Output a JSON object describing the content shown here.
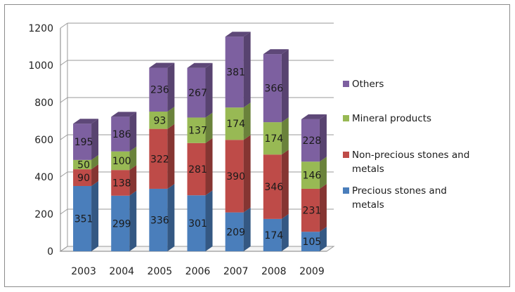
{
  "chart_data": {
    "type": "bar",
    "stacked": true,
    "three_d": true,
    "title": "",
    "xlabel": "",
    "ylabel": "",
    "categories": [
      "2003",
      "2004",
      "2005",
      "2006",
      "2007",
      "2008",
      "2009"
    ],
    "ylim": [
      0,
      1200
    ],
    "yticks": [
      "0",
      "200",
      "400",
      "600",
      "800",
      "1000",
      "1200"
    ],
    "grid": true,
    "legend_position": "right",
    "series": [
      {
        "name": "Precious stones and metals",
        "name_lines": [
          "Precious stones and",
          "metals"
        ],
        "color": "#4a7ebb",
        "values": [
          351,
          299,
          336,
          301,
          209,
          174,
          105
        ]
      },
      {
        "name": "Non-precious stones and metals",
        "name_lines": [
          "Non-precious stones and",
          "metals"
        ],
        "color": "#be4b48",
        "values": [
          90,
          138,
          322,
          281,
          390,
          346,
          231
        ]
      },
      {
        "name": "Mineral products",
        "name_lines": [
          "Mineral products"
        ],
        "color": "#98b954",
        "values": [
          50,
          100,
          93,
          137,
          174,
          174,
          146
        ]
      },
      {
        "name": "Others",
        "name_lines": [
          "Others"
        ],
        "color": "#7d60a0",
        "values": [
          195,
          186,
          236,
          267,
          381,
          366,
          228
        ]
      }
    ]
  }
}
